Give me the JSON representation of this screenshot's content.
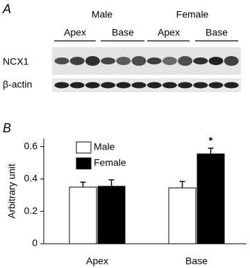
{
  "panel_a": {
    "label": "A",
    "groups": [
      "Male",
      "Female"
    ],
    "regions": [
      "Apex",
      "Base",
      "Apex",
      "Base"
    ],
    "rows": [
      "NCX1",
      "β-actin"
    ]
  },
  "chart_data": {
    "type": "bar",
    "panel_label": "B",
    "ylabel": "Arbitrary unit",
    "categories": [
      "Apex",
      "Base"
    ],
    "series": [
      {
        "name": "Male",
        "color": "#ffffff",
        "values": [
          0.35,
          0.345
        ],
        "errors": [
          0.03,
          0.04
        ]
      },
      {
        "name": "Female",
        "color": "#000000",
        "values": [
          0.355,
          0.555
        ],
        "errors": [
          0.04,
          0.035
        ]
      }
    ],
    "annotations": [
      {
        "text": "*",
        "category": 1,
        "series": 1
      }
    ],
    "ylim": [
      0,
      0.65
    ],
    "yticks": [
      0,
      0.2,
      0.4,
      0.6
    ],
    "legend": "upper left"
  }
}
